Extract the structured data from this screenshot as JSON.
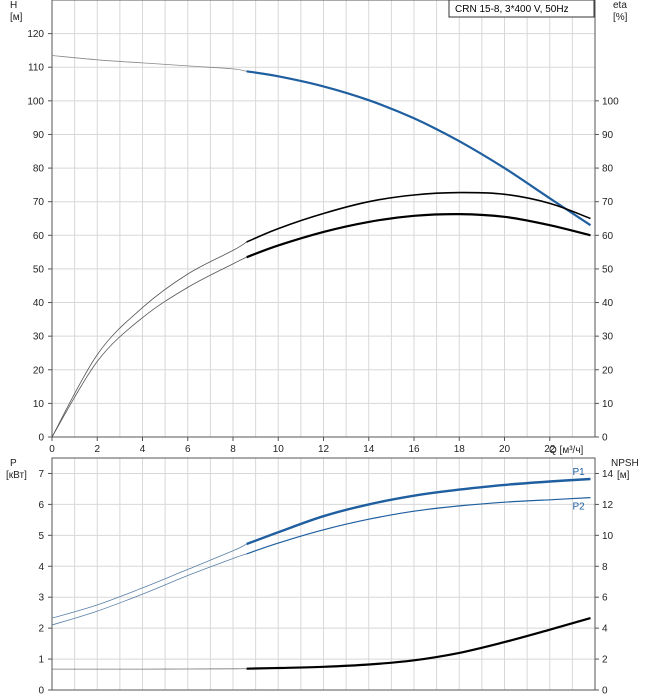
{
  "chart_data": [
    {
      "type": "line",
      "title": "CRN 15-8, 3*400 V, 50Hz",
      "xlabel": "Q [м³/ч]",
      "ylabel_left": "H\n[м]",
      "ylabel_right": "eta\n[%]",
      "xlim": [
        0,
        24
      ],
      "ylim_left": [
        0,
        130
      ],
      "ylim_right": [
        0,
        130
      ],
      "x_ticks": [
        0,
        2,
        4,
        6,
        8,
        10,
        12,
        14,
        16,
        18,
        20,
        22
      ],
      "y_ticks_left": [
        0,
        10,
        20,
        30,
        40,
        50,
        60,
        70,
        80,
        90,
        100,
        110,
        120
      ],
      "y_ticks_right": [
        0,
        10,
        20,
        30,
        40,
        50,
        60,
        70,
        80,
        90,
        100
      ],
      "grid": true,
      "legend": "top-right",
      "series": [
        {
          "id": "H",
          "color": "#1f5fa0",
          "x": [
            0,
            2,
            4,
            6,
            8,
            8.6,
            10,
            12,
            14,
            16,
            18,
            20,
            22,
            23.8
          ],
          "y": [
            113.5,
            112.2,
            111.3,
            110.4,
            109.5,
            108.8,
            107.3,
            104.3,
            100.2,
            94.8,
            88.0,
            80.0,
            71.0,
            63.0
          ]
        },
        {
          "id": "eta_pump",
          "color": "#000000",
          "x": [
            0,
            2,
            4,
            6,
            8,
            8.6,
            10,
            12,
            14,
            16,
            18,
            20,
            22,
            23.8
          ],
          "y": [
            0,
            24.5,
            38.5,
            48.5,
            55.5,
            58.0,
            62.0,
            66.5,
            70.0,
            72.0,
            72.7,
            72.2,
            69.5,
            65.0
          ]
        },
        {
          "id": "eta_total",
          "color": "#000000",
          "x": [
            0,
            2,
            4,
            6,
            8,
            8.6,
            10,
            12,
            14,
            16,
            18,
            20,
            22,
            23.8
          ],
          "y": [
            0,
            22.5,
            35.5,
            44.5,
            51.5,
            53.5,
            57.0,
            61.0,
            64.0,
            65.8,
            66.3,
            65.5,
            63.0,
            60.0
          ]
        }
      ]
    },
    {
      "type": "line",
      "xlabel": "",
      "ylabel_left": "P\n[кВт]",
      "ylabel_right": "NPSH\n[м]",
      "xlim": [
        0,
        24
      ],
      "ylim_left": [
        0,
        7.5
      ],
      "ylim_right": [
        0,
        15
      ],
      "y_ticks_left": [
        0,
        1,
        2,
        3,
        4,
        5,
        6,
        7
      ],
      "y_ticks_right": [
        0,
        2,
        4,
        6,
        8,
        10,
        12,
        14
      ],
      "grid": true,
      "series": [
        {
          "name": "P1",
          "color": "#1f5fa0",
          "x": [
            0,
            2,
            4,
            6,
            8,
            8.6,
            10,
            12,
            14,
            16,
            18,
            20,
            22,
            23.8
          ],
          "y": [
            2.32,
            2.75,
            3.3,
            3.9,
            4.5,
            4.72,
            5.1,
            5.62,
            6.0,
            6.28,
            6.48,
            6.63,
            6.74,
            6.82
          ]
        },
        {
          "name": "P2",
          "color": "#1f5fa0",
          "x": [
            0,
            2,
            4,
            6,
            8,
            8.6,
            10,
            12,
            14,
            16,
            18,
            20,
            22,
            23.8
          ],
          "y": [
            2.1,
            2.55,
            3.1,
            3.7,
            4.25,
            4.4,
            4.75,
            5.18,
            5.52,
            5.78,
            5.95,
            6.07,
            6.15,
            6.22
          ]
        },
        {
          "id": "NPSH",
          "color": "#000000",
          "axis": "right",
          "x": [
            0,
            2,
            4,
            6,
            8,
            8.6,
            10,
            12,
            14,
            16,
            18,
            20,
            22,
            23.8
          ],
          "y": [
            1.35,
            1.35,
            1.35,
            1.36,
            1.37,
            1.38,
            1.42,
            1.5,
            1.65,
            1.92,
            2.4,
            3.1,
            3.9,
            4.65
          ]
        }
      ]
    }
  ]
}
